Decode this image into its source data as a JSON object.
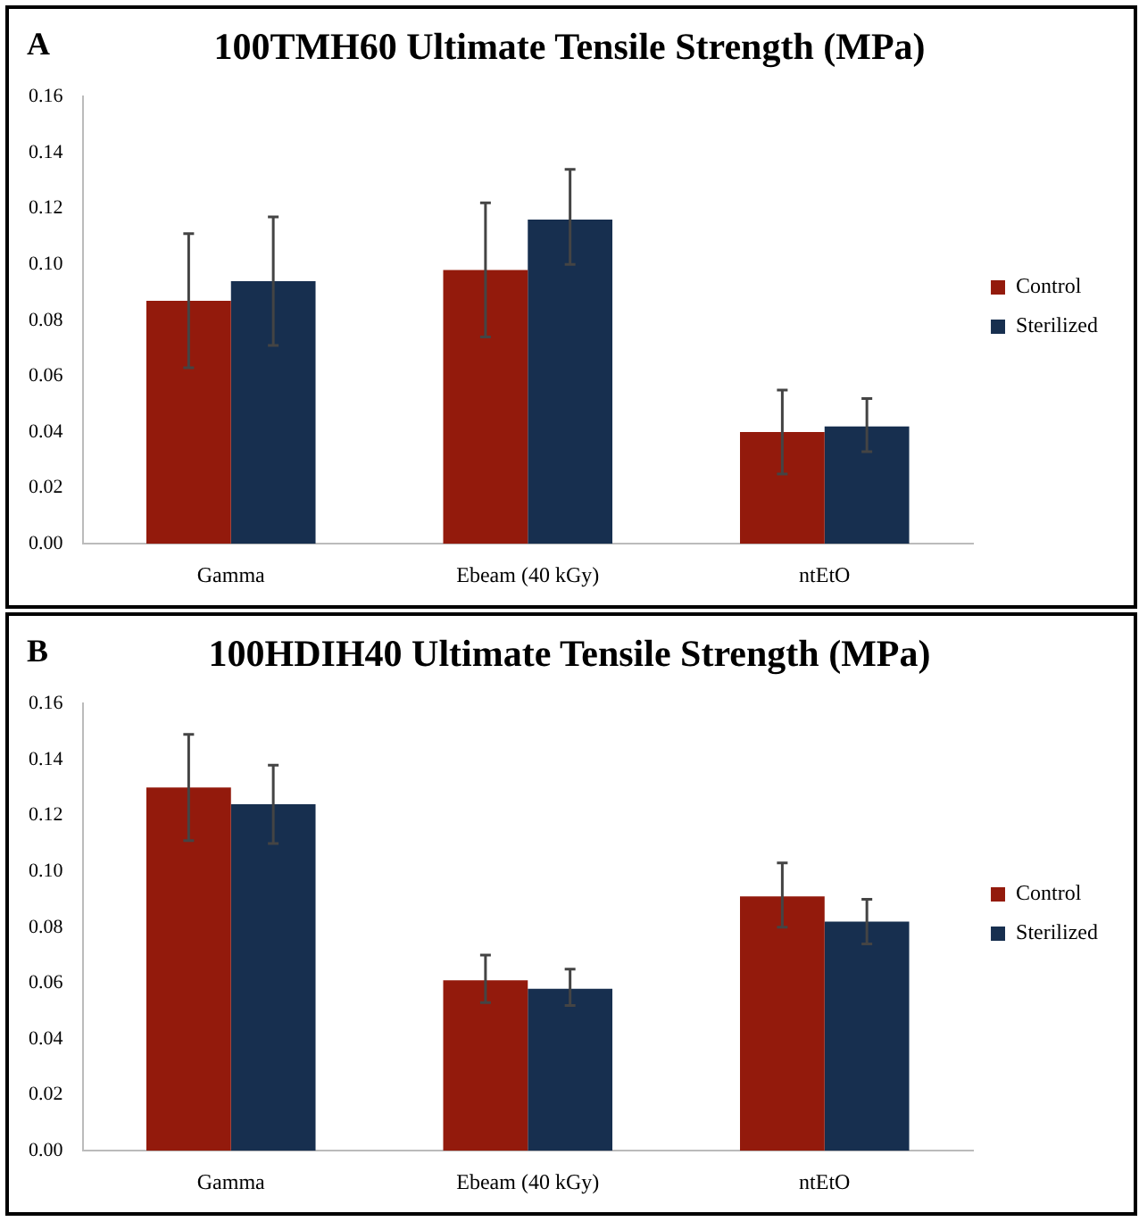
{
  "chart_data": [
    {
      "type": "bar",
      "title": "100TMH60 Ultimate Tensile Strength (MPa)",
      "annotations": [
        "A"
      ],
      "categories": [
        "Gamma",
        "Ebeam (40 kGy)",
        "ntEtO"
      ],
      "series": [
        {
          "name": "Control",
          "color": "#931a0c",
          "values": [
            0.087,
            0.098,
            0.04
          ],
          "errors": [
            [
              0.063,
              0.111
            ],
            [
              0.074,
              0.122
            ],
            [
              0.025,
              0.055
            ]
          ]
        },
        {
          "name": "Sterilized",
          "color": "#172f4f",
          "values": [
            0.094,
            0.116,
            0.042
          ],
          "errors": [
            [
              0.071,
              0.117
            ],
            [
              0.1,
              0.134
            ],
            [
              0.033,
              0.052
            ]
          ]
        }
      ],
      "ylim": [
        0,
        0.16
      ],
      "yticks": [
        {
          "value": 0,
          "label": "0.00"
        },
        {
          "value": 0.02,
          "label": "0.02"
        },
        {
          "value": 0.04,
          "label": "0.04"
        },
        {
          "value": 0.06,
          "label": "0.06"
        },
        {
          "value": 0.08,
          "label": "0.08"
        },
        {
          "value": 0.1,
          "label": "0.10"
        },
        {
          "value": 0.12,
          "label": "0.12"
        },
        {
          "value": 0.14,
          "label": "0.14"
        },
        {
          "value": 0.16,
          "label": "0.16"
        }
      ],
      "grid": false,
      "legend": "right"
    },
    {
      "type": "bar",
      "title": "100HDIH40 Ultimate Tensile Strength (MPa)",
      "annotations": [
        "B"
      ],
      "categories": [
        "Gamma",
        "Ebeam (40 kGy)",
        "ntEtO"
      ],
      "series": [
        {
          "name": "Control",
          "color": "#931a0c",
          "values": [
            0.13,
            0.061,
            0.091
          ],
          "errors": [
            [
              0.111,
              0.149
            ],
            [
              0.053,
              0.07
            ],
            [
              0.08,
              0.103
            ]
          ]
        },
        {
          "name": "Sterilized",
          "color": "#172f4f",
          "values": [
            0.124,
            0.058,
            0.082
          ],
          "errors": [
            [
              0.11,
              0.138
            ],
            [
              0.052,
              0.065
            ],
            [
              0.074,
              0.09
            ]
          ]
        }
      ],
      "ylim": [
        0,
        0.16
      ],
      "yticks": [
        {
          "value": 0,
          "label": "0.00"
        },
        {
          "value": 0.02,
          "label": "0.02"
        },
        {
          "value": 0.04,
          "label": "0.04"
        },
        {
          "value": 0.06,
          "label": "0.06"
        },
        {
          "value": 0.08,
          "label": "0.08"
        },
        {
          "value": 0.1,
          "label": "0.10"
        },
        {
          "value": 0.12,
          "label": "0.12"
        },
        {
          "value": 0.14,
          "label": "0.14"
        },
        {
          "value": 0.16,
          "label": "0.16"
        }
      ],
      "grid": false,
      "legend": "right"
    }
  ]
}
